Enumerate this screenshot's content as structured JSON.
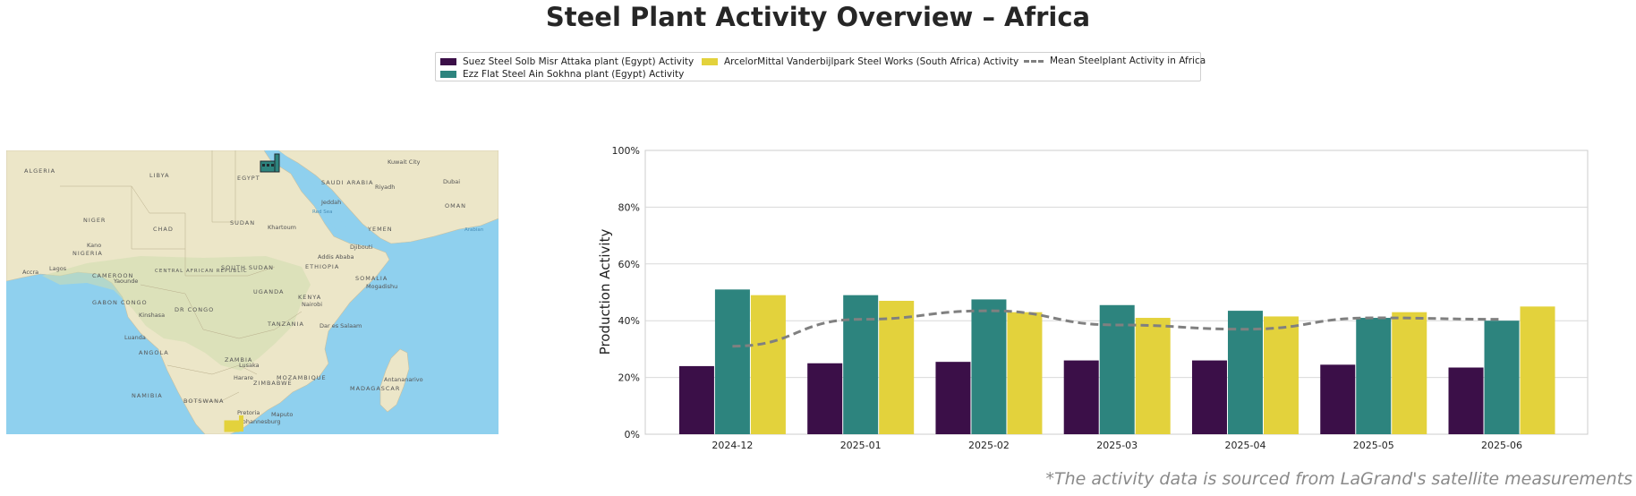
{
  "title": "Steel Plant Activity Overview – Africa",
  "footnote": "*The activity data is sourced from LaGrand's satellite measurements",
  "colors": {
    "suez": "#3b0f48",
    "ezz": "#2d847e",
    "arcelor": "#e3d23c",
    "mean": "#808080",
    "water": "#8fd0ee",
    "land": "#ece6c8"
  },
  "map": {
    "labels": [
      {
        "text": "ALGERIA"
      },
      {
        "text": "LIBYA"
      },
      {
        "text": "EGYPT"
      },
      {
        "text": "SAUDI ARABIA"
      },
      {
        "text": "Kuwait City"
      },
      {
        "text": "Dubai"
      },
      {
        "text": "Riyadh"
      },
      {
        "text": "Jeddah"
      },
      {
        "text": "OMAN"
      },
      {
        "text": "Red Sea"
      },
      {
        "text": "NIGER"
      },
      {
        "text": "CHAD"
      },
      {
        "text": "SUDAN"
      },
      {
        "text": "Khartoum"
      },
      {
        "text": "YEMEN"
      },
      {
        "text": "Arabian"
      },
      {
        "text": "Kano"
      },
      {
        "text": "NIGERIA"
      },
      {
        "text": "Djibouti"
      },
      {
        "text": "Addis Ababa"
      },
      {
        "text": "Accra"
      },
      {
        "text": "Lagos"
      },
      {
        "text": "CAMEROON"
      },
      {
        "text": "Yaounde"
      },
      {
        "text": "CENTRAL AFRICAN REPUBLIC"
      },
      {
        "text": "SOUTH SUDAN"
      },
      {
        "text": "ETHIOPIA"
      },
      {
        "text": "SOMALIA"
      },
      {
        "text": "Mogadishu"
      },
      {
        "text": "GABON"
      },
      {
        "text": "CONGO"
      },
      {
        "text": "UGANDA"
      },
      {
        "text": "KENYA"
      },
      {
        "text": "Nairobi"
      },
      {
        "text": "Kinshasa"
      },
      {
        "text": "DR CONGO"
      },
      {
        "text": "TANZANIA"
      },
      {
        "text": "Dar es Salaam"
      },
      {
        "text": "Luanda"
      },
      {
        "text": "ANGOLA"
      },
      {
        "text": "ZAMBIA"
      },
      {
        "text": "Lusaka"
      },
      {
        "text": "Harare"
      },
      {
        "text": "ZIMBABWE"
      },
      {
        "text": "MOZAMBIQUE"
      },
      {
        "text": "Antananarivo"
      },
      {
        "text": "MADAGASCAR"
      },
      {
        "text": "NAMIBIA"
      },
      {
        "text": "BOTSWANA"
      },
      {
        "text": "Pretoria"
      },
      {
        "text": "Maputo"
      },
      {
        "text": "Johannesburg"
      }
    ],
    "markers": [
      {
        "plant": "Suez Steel Solb Misr Attaka plant (Egypt)",
        "color": "#2d847e"
      },
      {
        "plant": "Ezz Flat Steel Ain Sokhna plant (Egypt)",
        "color": "#2d847e"
      },
      {
        "plant": "ArcelorMittal Vanderbijlpark Steel Works (South Africa)",
        "color": "#e3d23c"
      }
    ]
  },
  "chart_data": {
    "type": "bar",
    "title": "",
    "xlabel": "",
    "ylabel": "Production Activity",
    "ylim": [
      0,
      100
    ],
    "yticks": [
      0,
      20,
      40,
      60,
      80,
      100
    ],
    "ytick_labels": [
      "0%",
      "20%",
      "40%",
      "60%",
      "80%",
      "100%"
    ],
    "grid": "horizontal",
    "legend_position": "top-center",
    "categories": [
      "2024-12",
      "2025-01",
      "2025-02",
      "2025-03",
      "2025-04",
      "2025-05",
      "2025-06"
    ],
    "series": [
      {
        "name": "Suez Steel Solb Misr Attaka plant (Egypt) Activity",
        "type": "bar",
        "color": "#3b0f48",
        "values": [
          24,
          25,
          25.5,
          26,
          26,
          24.5,
          23.5
        ]
      },
      {
        "name": "Ezz Flat Steel Ain Sokhna plant (Egypt) Activity",
        "type": "bar",
        "color": "#2d847e",
        "values": [
          51,
          49,
          47.5,
          45.5,
          43.5,
          41,
          40
        ]
      },
      {
        "name": "ArcelorMittal Vanderbijlpark Steel Works (South Africa) Activity",
        "type": "bar",
        "color": "#e3d23c",
        "values": [
          49,
          47,
          43,
          41,
          41.5,
          43,
          45
        ]
      },
      {
        "name": "Mean Steelplant Activity in Africa",
        "type": "line",
        "style": "dashed",
        "color": "#808080",
        "values": [
          31,
          40.5,
          43.5,
          38.5,
          37,
          41,
          40.5
        ]
      }
    ]
  }
}
